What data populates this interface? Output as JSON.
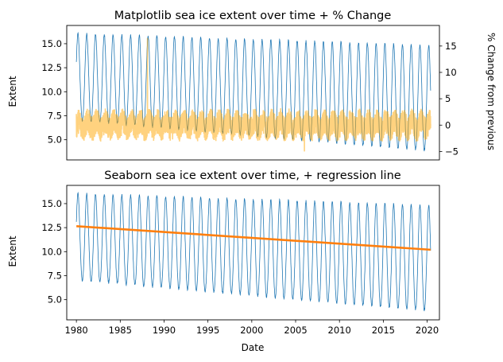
{
  "top_chart": {
    "title": "Matplotlib sea ice extent over time + % Change",
    "ylabel_left": "Extent",
    "ylabel_right": "% Change from previous"
  },
  "bottom_chart": {
    "title": "Seaborn sea ice extent over time, + regression line",
    "ylabel": "Extent",
    "xlabel": "Date"
  },
  "chart_data": [
    {
      "type": "line",
      "title": "Matplotlib sea ice extent over time + % Change",
      "xlabel": "",
      "ylabel": "Extent",
      "ylabel_secondary": "% Change from previous",
      "xlim": [
        1978.9,
        2021.4
      ],
      "ylim": [
        2.9,
        16.9
      ],
      "ylim_secondary": [
        -6.6,
        18.9
      ],
      "y_ticks": [
        5.0,
        7.5,
        10.0,
        12.5,
        15.0
      ],
      "y_tick_labels": [
        "5.0",
        "7.5",
        "10.0",
        "12.5",
        "15.0"
      ],
      "y_ticks_secondary": [
        -5,
        0,
        5,
        10,
        15
      ],
      "y_tick_labels_secondary": [
        "−5",
        "0",
        "5",
        "10",
        "15"
      ],
      "x_ticks": [],
      "extent_model": {
        "start_year": 1980,
        "end_year": 2020.4,
        "mean_start": 11.3,
        "mean_slope_per_year": -0.055,
        "amplitude_start": 4.5,
        "amplitude_slope_per_year": 0.025,
        "annual_peak_month": "early March",
        "annual_minimum_month": "mid September",
        "max_value": 16.4,
        "min_value": 3.4
      },
      "pct_change": {
        "typical_range": [
          -2,
          2
        ],
        "max_value": 16.5,
        "max_date": "1988",
        "min_value": -5.0,
        "min_date": "2006"
      },
      "series": [
        {
          "name": "",
          "role": "extent",
          "axis": "left",
          "color": "#1f77b4",
          "style": "thin line"
        },
        {
          "name": "",
          "role": "pct_change",
          "axis": "right",
          "color": "#ffa500",
          "alpha": 0.5,
          "style": "line"
        }
      ],
      "grid": false,
      "legend": "none"
    },
    {
      "type": "line",
      "title": "Seaborn sea ice extent over time, + regression line",
      "xlabel": "Date",
      "ylabel": "Extent",
      "xlim": [
        1978.9,
        2021.4
      ],
      "ylim": [
        2.9,
        16.9
      ],
      "x_ticks": [
        1980,
        1985,
        1990,
        1995,
        2000,
        2005,
        2010,
        2015,
        2020
      ],
      "x_tick_labels": [
        "1980",
        "1985",
        "1990",
        "1995",
        "2000",
        "2005",
        "2010",
        "2015",
        "2020"
      ],
      "y_ticks": [
        5.0,
        7.5,
        10.0,
        12.5,
        15.0
      ],
      "y_tick_labels": [
        "5.0",
        "7.5",
        "10.0",
        "12.5",
        "15.0"
      ],
      "regression_line": {
        "x": [
          1980.0,
          2020.4
        ],
        "y": [
          12.65,
          10.2
        ],
        "color": "#ff7f0e"
      },
      "series": [
        {
          "name": "",
          "role": "extent",
          "color": "#1f77b4",
          "style": "thin line"
        },
        {
          "name": "",
          "role": "regression",
          "color": "#ff7f0e",
          "style": "thick line"
        }
      ],
      "grid": false,
      "legend": "none"
    }
  ]
}
